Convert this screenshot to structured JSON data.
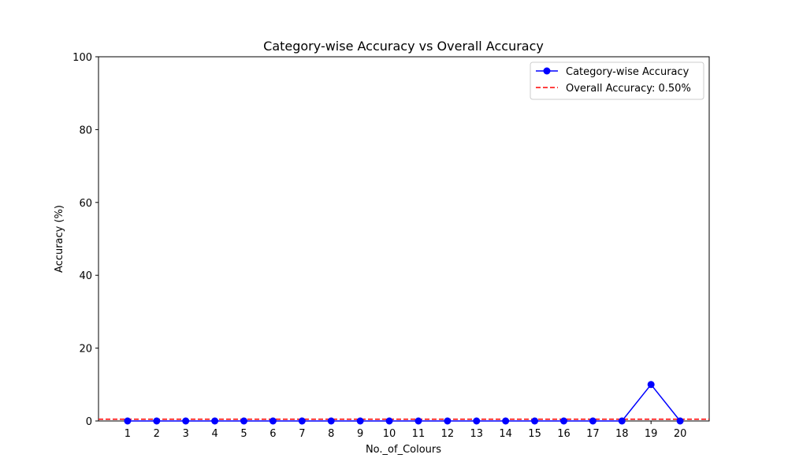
{
  "chart_data": {
    "type": "line",
    "title": "Category-wise Accuracy vs Overall Accuracy",
    "xlabel": "No._of_Colours",
    "ylabel": "Accuracy (%)",
    "categories": [
      "1",
      "2",
      "3",
      "4",
      "5",
      "6",
      "7",
      "8",
      "9",
      "10",
      "11",
      "12",
      "13",
      "14",
      "15",
      "16",
      "17",
      "18",
      "19",
      "20"
    ],
    "series": [
      {
        "name": "Category-wise Accuracy",
        "values": [
          0,
          0,
          0,
          0,
          0,
          0,
          0,
          0,
          0,
          0,
          0,
          0,
          0,
          0,
          0,
          0,
          0,
          0,
          10,
          0
        ],
        "color": "#0000ff",
        "marker": "circle",
        "line_style": "solid"
      }
    ],
    "reference_lines": [
      {
        "name": "Overall Accuracy: 0.50%",
        "value": 0.5,
        "color": "#ff0000",
        "line_style": "dashed"
      }
    ],
    "ylim": [
      0,
      100
    ],
    "yticks": [
      "0",
      "20",
      "40",
      "60",
      "80",
      "100"
    ],
    "xlim": [
      0,
      21
    ],
    "grid": false,
    "legend_position": "top-right"
  }
}
